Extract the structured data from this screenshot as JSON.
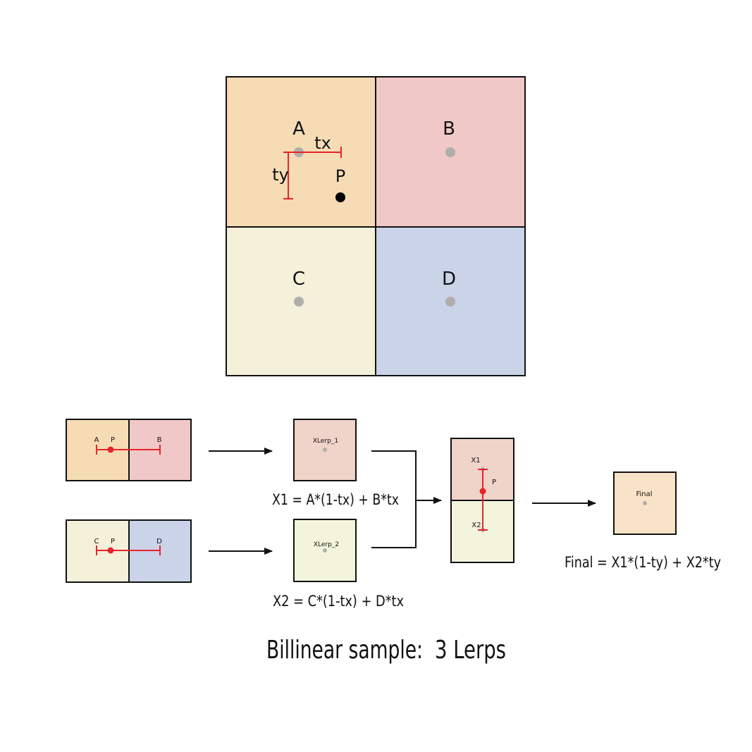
{
  "colors": {
    "cell_a": "#f5dcb5",
    "cell_b": "#f0c8c8",
    "cell_c": "#f5f0da",
    "cell_d": "#cad3e8",
    "xlerp_1": "#f0d3c9",
    "xlerp_2": "#f2f5dc",
    "final": "#f9e3c8",
    "lerp_line": "#e8242a",
    "sample_dot": "#b0aeaa",
    "point_p": "#000000",
    "border": "#111111",
    "caption_highlight": "#666666"
  },
  "grid": {
    "label_a": "A",
    "label_b": "B",
    "label_c": "C",
    "label_d": "D",
    "label_p": "P",
    "label_tx": "tx",
    "label_ty": "ty"
  },
  "row1": {
    "label_a": "A",
    "label_p": "P",
    "label_b": "B"
  },
  "row2": {
    "label_c": "C",
    "label_p": "P",
    "label_d": "D"
  },
  "xlerp_1": {
    "label": "XLerp_1",
    "formula": "X1 = A*(1-tx) + B*tx"
  },
  "xlerp_2": {
    "label": "XLerp_2",
    "formula": "X2 = C*(1-tx) + D*tx"
  },
  "combine": {
    "label_x1": "X1",
    "label_p": "P",
    "label_x2": "X2"
  },
  "final": {
    "label": "Final",
    "formula": "Final = X1*(1-ty) + X2*ty"
  },
  "caption": {
    "prefix": "Billinear sample:",
    "highlight": "3 Lerps"
  }
}
